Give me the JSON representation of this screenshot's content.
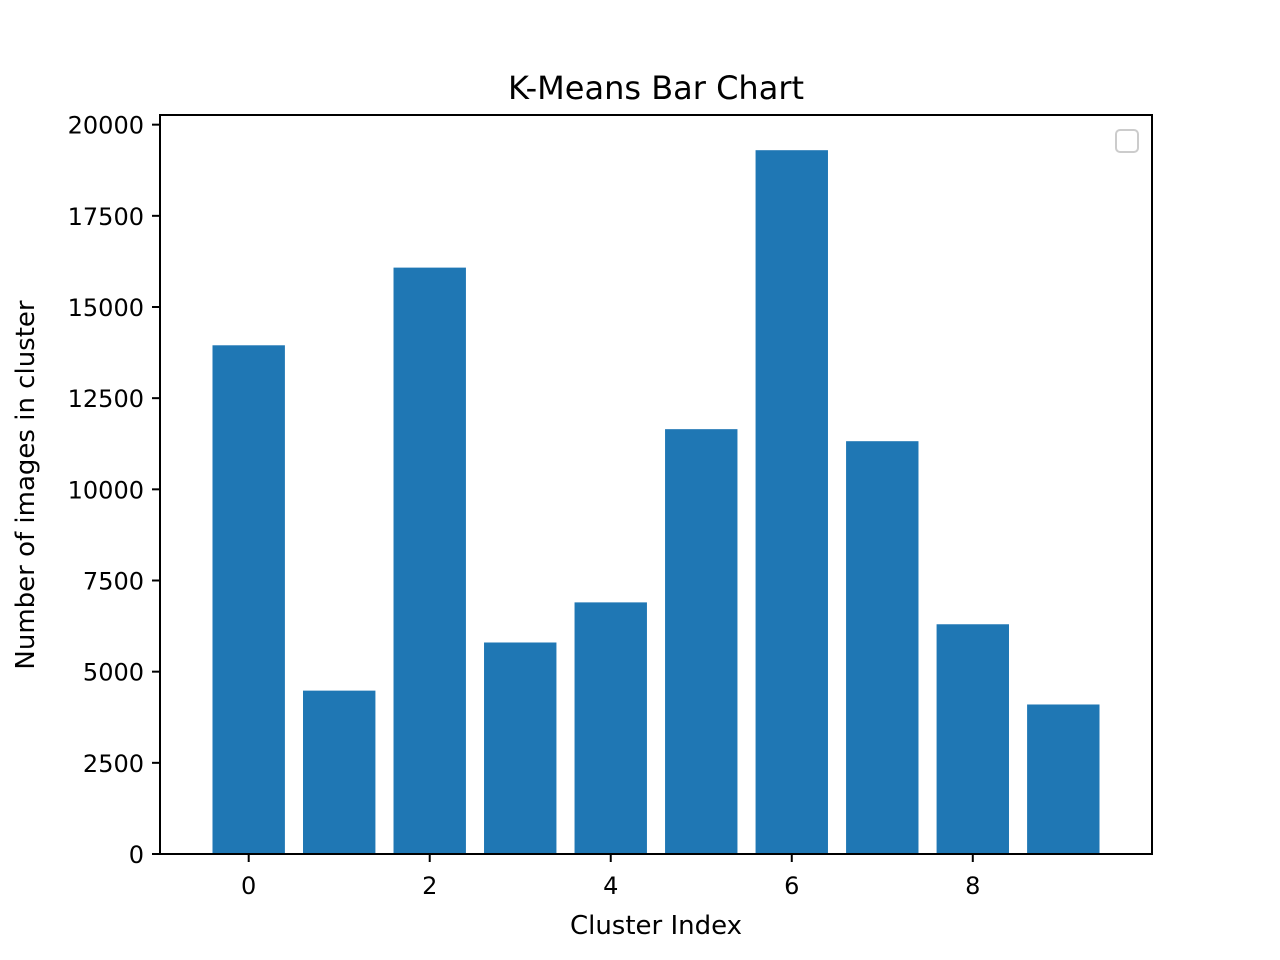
{
  "chart_data": {
    "type": "bar",
    "title": "K-Means Bar Chart",
    "xlabel": "Cluster Index",
    "ylabel": "Number of images in cluster",
    "categories": [
      0,
      1,
      2,
      3,
      4,
      5,
      6,
      7,
      8,
      9
    ],
    "values": [
      13950,
      4480,
      16080,
      5800,
      6900,
      11650,
      19300,
      11320,
      6300,
      4100
    ],
    "xlim": [
      -0.98,
      9.98
    ],
    "ylim": [
      0,
      20265
    ],
    "xticks": [
      0,
      2,
      4,
      6,
      8
    ],
    "yticks": [
      0,
      2500,
      5000,
      7500,
      10000,
      12500,
      15000,
      17500,
      20000
    ],
    "xtick_labels": [
      "0",
      "2",
      "4",
      "6",
      "8"
    ],
    "ytick_labels": [
      "0",
      "2500",
      "5000",
      "7500",
      "10000",
      "12500",
      "15000",
      "17500",
      "20000"
    ],
    "bar_color": "#1f77b4",
    "grid": false,
    "legend": {
      "placement": "top-right",
      "entries": []
    }
  }
}
